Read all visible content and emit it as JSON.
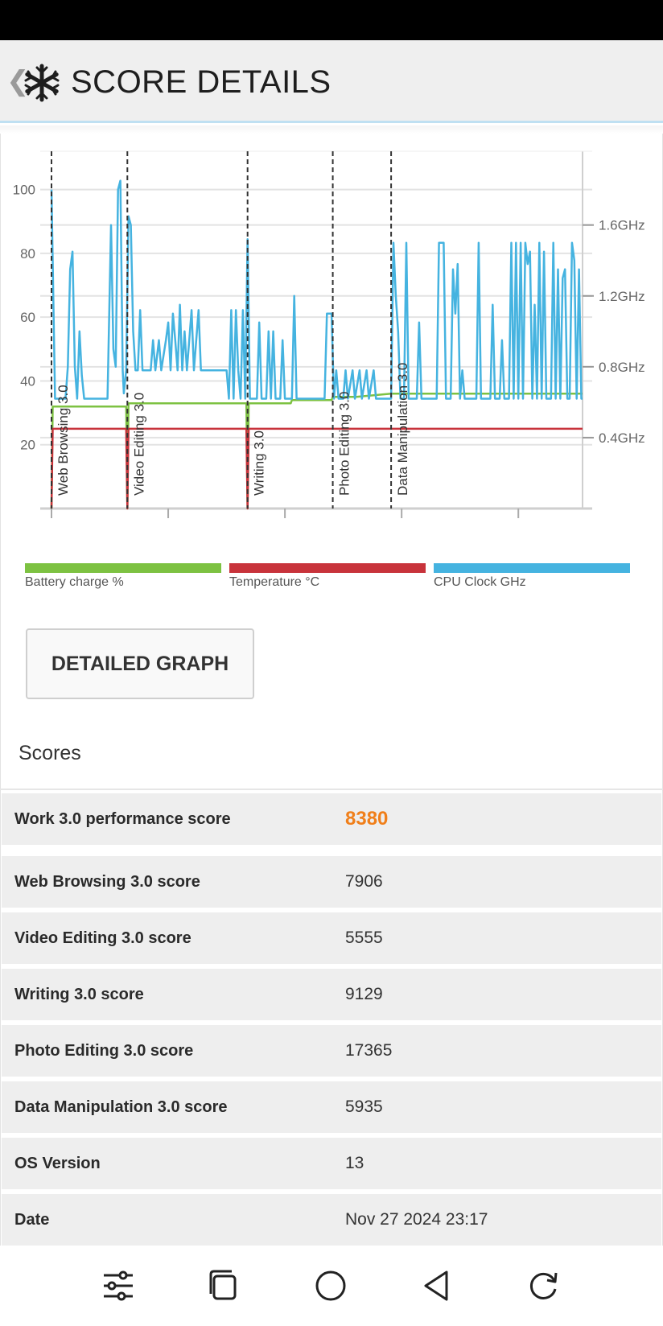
{
  "header": {
    "title": "SCORE DETAILS",
    "back_icon": "chevron-left-icon",
    "logo_icon": "snowflake-icon"
  },
  "chart_data": {
    "type": "line",
    "x_unit": "mm:ss",
    "x_ticks": [
      "00:00",
      "01:40",
      "03:20",
      "05:00",
      "06:40"
    ],
    "x_range": [
      "00:00",
      "07:35"
    ],
    "y_left_ticks": [
      20,
      40,
      60,
      80,
      100
    ],
    "y_left_range": [
      0,
      110
    ],
    "y_right_ticks": [
      "0.4GHz",
      "0.8GHz",
      "1.2GHz",
      "1.6GHz"
    ],
    "y_right_range_ghz": [
      0,
      1.98
    ],
    "grid": true,
    "markers": [
      {
        "label": "Web Browsing 3.0",
        "t": 0
      },
      {
        "label": "Video Editing 3.0",
        "t": 65
      },
      {
        "label": "Writing 3.0",
        "t": 168
      },
      {
        "label": "Photo Editing 3.0",
        "t": 241
      },
      {
        "label": "Data Manipulation 3.0",
        "t": 291
      }
    ],
    "series": [
      {
        "name": "Battery charge %",
        "color": "#7dc242",
        "points": [
          [
            0,
            0
          ],
          [
            1,
            32
          ],
          [
            64,
            32
          ],
          [
            65,
            0
          ],
          [
            66,
            33
          ],
          [
            167,
            33
          ],
          [
            168,
            0
          ],
          [
            169,
            33
          ],
          [
            205,
            33
          ],
          [
            206,
            34
          ],
          [
            240,
            34
          ],
          [
            241,
            35
          ],
          [
            260,
            35
          ],
          [
            261,
            35
          ],
          [
            291,
            36
          ],
          [
            340,
            36
          ],
          [
            341,
            36
          ],
          [
            400,
            36
          ],
          [
            401,
            36
          ],
          [
            455,
            36
          ]
        ]
      },
      {
        "name": "Temperature °C",
        "color": "#c8333b",
        "points": [
          [
            0,
            0
          ],
          [
            1,
            25
          ],
          [
            64,
            25
          ],
          [
            65,
            0
          ],
          [
            66,
            25
          ],
          [
            167,
            25
          ],
          [
            168,
            0
          ],
          [
            169,
            25
          ],
          [
            455,
            25
          ]
        ]
      },
      {
        "name": "CPU Clock GHz",
        "color": "#45b3e0",
        "points": [
          [
            0,
            1.8
          ],
          [
            3,
            0.62
          ],
          [
            12,
            0.62
          ],
          [
            14,
            0.8
          ],
          [
            16,
            1.35
          ],
          [
            18,
            1.45
          ],
          [
            20,
            0.8
          ],
          [
            22,
            0.62
          ],
          [
            24,
            1.0
          ],
          [
            26,
            0.75
          ],
          [
            28,
            0.62
          ],
          [
            48,
            0.62
          ],
          [
            51,
            1.6
          ],
          [
            53,
            0.9
          ],
          [
            55,
            0.8
          ],
          [
            57,
            1.8
          ],
          [
            59,
            1.85
          ],
          [
            61,
            0.78
          ],
          [
            62,
            0.65
          ],
          [
            64,
            0.78
          ],
          [
            66,
            1.65
          ],
          [
            68,
            1.6
          ],
          [
            70,
            1.0
          ],
          [
            72,
            0.78
          ],
          [
            74,
            0.78
          ],
          [
            76,
            1.12
          ],
          [
            78,
            0.78
          ],
          [
            85,
            0.78
          ],
          [
            87,
            0.95
          ],
          [
            89,
            0.78
          ],
          [
            92,
            0.95
          ],
          [
            94,
            0.78
          ],
          [
            98,
            0.95
          ],
          [
            100,
            1.05
          ],
          [
            102,
            0.78
          ],
          [
            104,
            1.1
          ],
          [
            106,
            0.95
          ],
          [
            108,
            0.78
          ],
          [
            110,
            1.15
          ],
          [
            112,
            0.78
          ],
          [
            114,
            1.0
          ],
          [
            116,
            0.78
          ],
          [
            120,
            1.12
          ],
          [
            122,
            0.78
          ],
          [
            126,
            1.12
          ],
          [
            128,
            0.78
          ],
          [
            150,
            0.78
          ],
          [
            152,
            0.62
          ],
          [
            154,
            1.12
          ],
          [
            156,
            0.62
          ],
          [
            158,
            1.12
          ],
          [
            160,
            0.78
          ],
          [
            162,
            0.62
          ],
          [
            164,
            1.12
          ],
          [
            166,
            0.62
          ],
          [
            168,
            1.52
          ],
          [
            170,
            0.62
          ],
          [
            176,
            0.62
          ],
          [
            178,
            1.05
          ],
          [
            180,
            0.62
          ],
          [
            184,
            0.62
          ],
          [
            186,
            1.0
          ],
          [
            188,
            0.62
          ],
          [
            190,
            1.0
          ],
          [
            192,
            0.62
          ],
          [
            196,
            0.62
          ],
          [
            198,
            0.95
          ],
          [
            200,
            0.62
          ],
          [
            206,
            0.62
          ],
          [
            208,
            1.2
          ],
          [
            210,
            0.62
          ],
          [
            234,
            0.62
          ],
          [
            236,
            1.1
          ],
          [
            240,
            1.1
          ],
          [
            242,
            0.62
          ],
          [
            244,
            0.78
          ],
          [
            246,
            0.62
          ],
          [
            250,
            0.62
          ],
          [
            252,
            0.78
          ],
          [
            254,
            0.62
          ],
          [
            258,
            0.78
          ],
          [
            260,
            0.62
          ],
          [
            264,
            0.78
          ],
          [
            266,
            0.62
          ],
          [
            270,
            0.78
          ],
          [
            272,
            0.62
          ],
          [
            276,
            0.78
          ],
          [
            278,
            0.62
          ],
          [
            291,
            0.62
          ],
          [
            293,
            1.5
          ],
          [
            295,
            1.2
          ],
          [
            297,
            1.0
          ],
          [
            299,
            0.62
          ],
          [
            302,
            0.62
          ],
          [
            304,
            1.5
          ],
          [
            306,
            0.62
          ],
          [
            313,
            0.62
          ],
          [
            315,
            1.05
          ],
          [
            317,
            0.62
          ],
          [
            330,
            0.62
          ],
          [
            332,
            1.5
          ],
          [
            336,
            1.5
          ],
          [
            338,
            0.62
          ],
          [
            342,
            0.62
          ],
          [
            344,
            1.35
          ],
          [
            346,
            1.1
          ],
          [
            348,
            1.38
          ],
          [
            350,
            0.62
          ],
          [
            352,
            0.78
          ],
          [
            354,
            0.62
          ],
          [
            364,
            0.62
          ],
          [
            366,
            1.5
          ],
          [
            368,
            0.62
          ],
          [
            376,
            0.62
          ],
          [
            378,
            1.15
          ],
          [
            380,
            0.62
          ],
          [
            384,
            0.62
          ],
          [
            386,
            0.95
          ],
          [
            388,
            0.62
          ],
          [
            392,
            0.62
          ],
          [
            394,
            1.5
          ],
          [
            396,
            0.62
          ],
          [
            398,
            1.5
          ],
          [
            400,
            0.62
          ],
          [
            402,
            1.5
          ],
          [
            404,
            0.62
          ],
          [
            406,
            1.5
          ],
          [
            408,
            1.38
          ],
          [
            410,
            1.45
          ],
          [
            412,
            0.62
          ],
          [
            414,
            1.15
          ],
          [
            416,
            0.62
          ],
          [
            418,
            1.5
          ],
          [
            420,
            0.62
          ],
          [
            422,
            1.45
          ],
          [
            424,
            0.62
          ],
          [
            428,
            0.62
          ],
          [
            430,
            1.5
          ],
          [
            432,
            0.62
          ],
          [
            434,
            1.35
          ],
          [
            436,
            0.62
          ],
          [
            438,
            1.3
          ],
          [
            440,
            1.35
          ],
          [
            442,
            0.62
          ],
          [
            444,
            0.62
          ],
          [
            446,
            1.5
          ],
          [
            448,
            1.4
          ],
          [
            450,
            0.62
          ],
          [
            452,
            1.35
          ],
          [
            454,
            0.62
          ],
          [
            455,
            0.62
          ]
        ]
      }
    ]
  },
  "legend": [
    {
      "label": "Battery charge %",
      "color": "#7dc242"
    },
    {
      "label": "Temperature °C",
      "color": "#c8333b"
    },
    {
      "label": "CPU Clock GHz",
      "color": "#45b3e0"
    }
  ],
  "detailed_graph_button": "DETAILED GRAPH",
  "scores_heading": "Scores",
  "scores": [
    {
      "label": "Work 3.0 performance score",
      "value": "8380",
      "highlight": true
    },
    {
      "label": "Web Browsing 3.0 score",
      "value": "7906"
    },
    {
      "label": "Video Editing 3.0 score",
      "value": "5555"
    },
    {
      "label": "Writing 3.0 score",
      "value": "9129"
    },
    {
      "label": "Photo Editing 3.0 score",
      "value": "17365"
    },
    {
      "label": "Data Manipulation 3.0 score",
      "value": "5935"
    },
    {
      "label": "OS Version",
      "value": "13"
    },
    {
      "label": "Date",
      "value": "Nov 27 2024 23:17"
    }
  ],
  "navbar": [
    "sliders-icon",
    "recent-apps-icon",
    "home-icon",
    "back-icon",
    "rotate-icon"
  ],
  "colors": {
    "accent": "#f07f1a",
    "battery": "#7dc242",
    "temperature": "#c8333b",
    "cpu": "#45b3e0"
  }
}
